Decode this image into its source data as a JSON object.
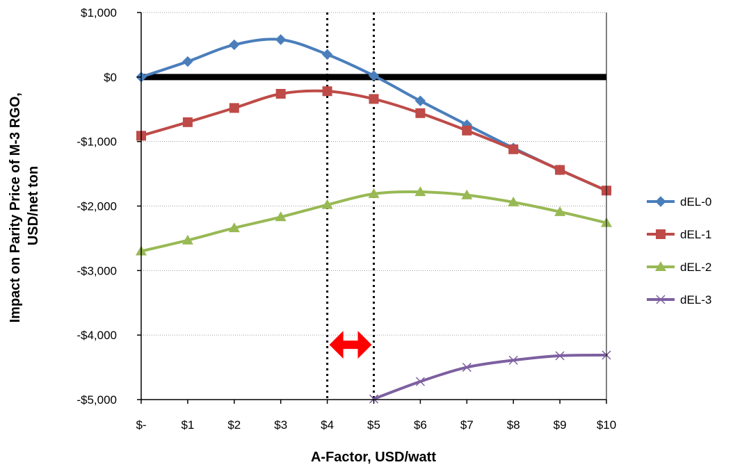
{
  "chart_data": {
    "type": "line",
    "title": "",
    "xlabel": "A-Factor, USD/watt",
    "ylabel_lines": [
      "Impact on Parity Price of M-3 RGO,",
      "USD/net ton"
    ],
    "x_ticks": [
      0,
      1,
      2,
      3,
      4,
      5,
      6,
      7,
      8,
      9,
      10
    ],
    "x_tick_labels": [
      "$-",
      "$1",
      "$2",
      "$3",
      "$4",
      "$5",
      "$6",
      "$7",
      "$8",
      "$9",
      "$10"
    ],
    "xlim": [
      0,
      10
    ],
    "y_ticks": [
      -5000,
      -4000,
      -3000,
      -2000,
      -1000,
      0,
      1000
    ],
    "y_tick_labels": [
      "-$5,000",
      "-$4,000",
      "-$3,000",
      "-$2,000",
      "-$1,000",
      "$0",
      "$1,000"
    ],
    "ylim": [
      -5000,
      1000
    ],
    "grid": "horizontal dotted",
    "legend_position": "right",
    "zero_line_color": "#000000",
    "vertical_markers": [
      4,
      5
    ],
    "range_arrow": {
      "x_from": 4,
      "x_to": 5,
      "y": -4150,
      "color": "#ff0000"
    },
    "series": [
      {
        "name": "dEL-0",
        "color": "#4a7ebb",
        "marker": "diamond",
        "x": [
          0,
          1,
          2,
          3,
          4,
          5,
          6,
          7,
          8,
          9,
          10
        ],
        "values": [
          0,
          240,
          500,
          580,
          350,
          20,
          -370,
          -740,
          -1100,
          -1440,
          -1760
        ]
      },
      {
        "name": "dEL-1",
        "color": "#be4b48",
        "marker": "square",
        "x": [
          0,
          1,
          2,
          3,
          4,
          5,
          6,
          7,
          8,
          9,
          10
        ],
        "values": [
          -910,
          -700,
          -480,
          -260,
          -220,
          -340,
          -560,
          -830,
          -1120,
          -1440,
          -1760
        ]
      },
      {
        "name": "dEL-2",
        "color": "#98b954",
        "marker": "triangle",
        "x": [
          0,
          1,
          2,
          3,
          4,
          5,
          6,
          7,
          8,
          9,
          10
        ],
        "values": [
          -2700,
          -2530,
          -2340,
          -2170,
          -1980,
          -1810,
          -1780,
          -1830,
          -1940,
          -2090,
          -2260
        ]
      },
      {
        "name": "dEL-3",
        "color": "#7d60a0",
        "marker": "x",
        "x": [
          5,
          6,
          7,
          8,
          9,
          10
        ],
        "values": [
          -4990,
          -4720,
          -4500,
          -4390,
          -4320,
          -4310
        ]
      }
    ]
  }
}
